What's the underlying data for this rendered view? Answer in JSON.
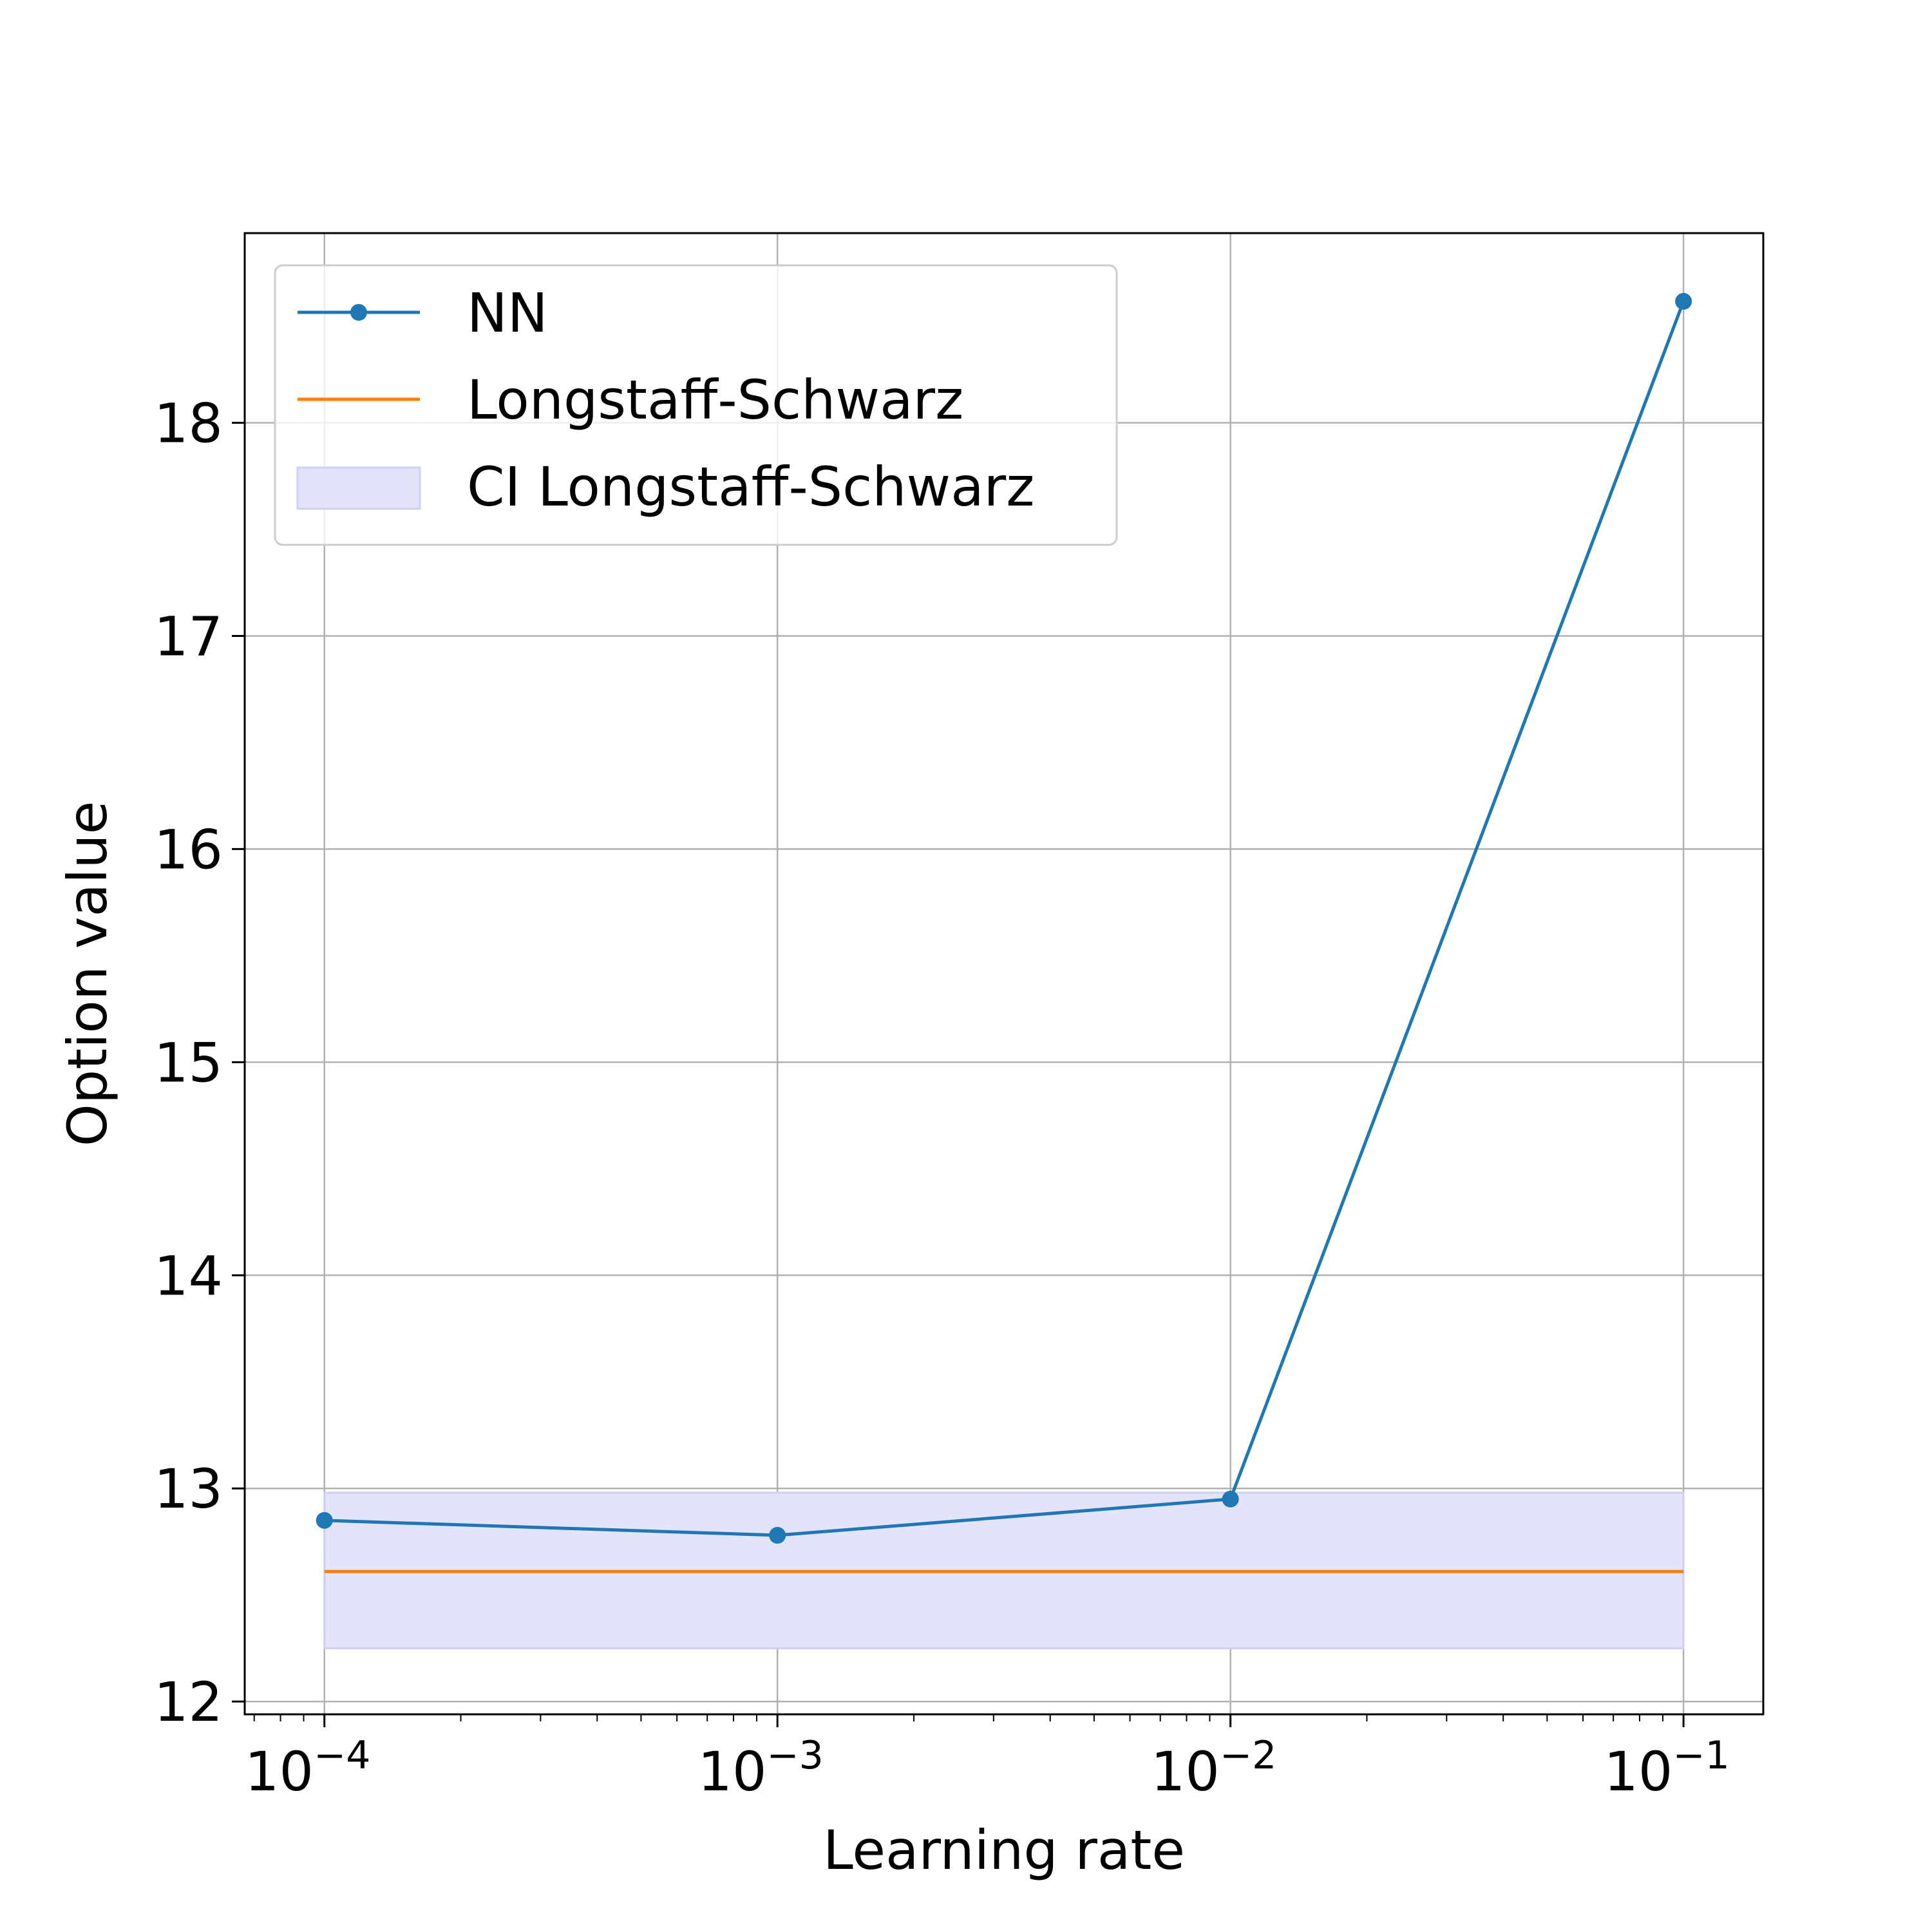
{
  "chart_data": {
    "type": "line",
    "xlabel": "Learning rate",
    "ylabel": "Option value",
    "x_scale": "log",
    "xlim": [
      6.67e-05,
      0.15
    ],
    "ylim": [
      11.94,
      18.89
    ],
    "grid": true,
    "legend_position": "top-left",
    "x_ticks": [
      {
        "value": 0.0001,
        "base": "10",
        "exp": "−4"
      },
      {
        "value": 0.001,
        "base": "10",
        "exp": "−3"
      },
      {
        "value": 0.01,
        "base": "10",
        "exp": "−2"
      },
      {
        "value": 0.1,
        "base": "10",
        "exp": "−1"
      }
    ],
    "y_ticks": [
      {
        "value": 12,
        "label": "12"
      },
      {
        "value": 13,
        "label": "13"
      },
      {
        "value": 14,
        "label": "14"
      },
      {
        "value": 15,
        "label": "15"
      },
      {
        "value": 16,
        "label": "16"
      },
      {
        "value": 17,
        "label": "17"
      },
      {
        "value": 18,
        "label": "18"
      }
    ],
    "x": [
      0.0001,
      0.001,
      0.01,
      0.1
    ],
    "series": [
      {
        "name": "NN",
        "kind": "line-marker",
        "color": "#1f77b4",
        "values": [
          12.85,
          12.78,
          12.95,
          18.57
        ]
      },
      {
        "name": "Longstaff-Schwarz",
        "kind": "line",
        "color": "#ff7f0e",
        "values": [
          12.61,
          12.61,
          12.61,
          12.61
        ]
      },
      {
        "name": "CI Longstaff-Schwarz",
        "kind": "band",
        "color": "#e3e3fa",
        "lower": 12.25,
        "upper": 12.98
      }
    ]
  }
}
